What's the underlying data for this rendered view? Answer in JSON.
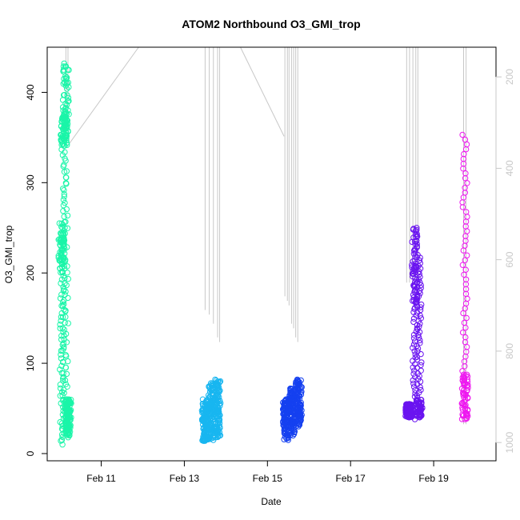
{
  "chart_data": {
    "type": "scatter",
    "title": "ATOM2 Northbound O3_GMI_trop",
    "xlabel": "Date",
    "ylabel": "O3_GMI_trop",
    "x_ticks": [
      "Feb 11",
      "Feb 13",
      "Feb 15",
      "Feb 17",
      "Feb 19"
    ],
    "x_tick_days": [
      11,
      13,
      15,
      17,
      19
    ],
    "xlim_days": [
      9.7,
      20.5
    ],
    "ylim": [
      -8,
      450
    ],
    "y_ticks": [
      0,
      100,
      200,
      300,
      400
    ],
    "right_axis": {
      "label": "",
      "ticks": [
        200,
        400,
        600,
        800,
        1000
      ],
      "ylim_inverted": [
        1040,
        135
      ],
      "color": "#c8c8c8"
    },
    "series": [
      {
        "color": "#1af5a8",
        "segments": [
          {
            "day": 10.05,
            "lo": 10,
            "hi": 255,
            "dense_from": 200,
            "dense_to": 255
          },
          {
            "day": 10.1,
            "lo": 15,
            "hi": 380,
            "dense_from": 340,
            "dense_to": 380
          },
          {
            "day": 10.15,
            "lo": 18,
            "hi": 432,
            "dense_from": 345,
            "dense_to": 432
          },
          {
            "day": 10.2,
            "lo": 20,
            "hi": 60,
            "dense_from": 20,
            "dense_to": 60
          }
        ]
      },
      {
        "color": "#18b6f0",
        "segments": [
          {
            "day": 13.5,
            "lo": 14,
            "hi": 60,
            "dense_from": 14,
            "dense_to": 60
          },
          {
            "day": 13.65,
            "lo": 15,
            "hi": 78,
            "dense_from": 15,
            "dense_to": 78
          },
          {
            "day": 13.8,
            "lo": 18,
            "hi": 82,
            "dense_from": 18,
            "dense_to": 82
          }
        ]
      },
      {
        "color": "#1540f0",
        "segments": [
          {
            "day": 15.45,
            "lo": 15,
            "hi": 60,
            "dense_from": 30,
            "dense_to": 60
          },
          {
            "day": 15.6,
            "lo": 20,
            "hi": 72,
            "dense_from": 30,
            "dense_to": 72
          },
          {
            "day": 15.75,
            "lo": 30,
            "hi": 82,
            "dense_from": 35,
            "dense_to": 82
          }
        ]
      },
      {
        "color": "#6a14f0",
        "segments": [
          {
            "day": 18.4,
            "lo": 40,
            "hi": 55,
            "dense_from": 40,
            "dense_to": 55
          },
          {
            "day": 18.55,
            "lo": 38,
            "hi": 250,
            "dense_from": 160,
            "dense_to": 250
          },
          {
            "day": 18.65,
            "lo": 40,
            "hi": 220,
            "dense_from": 40,
            "dense_to": 60
          }
        ]
      },
      {
        "color": "#ee18f0",
        "segments": [
          {
            "day": 19.75,
            "lo": 38,
            "hi": 353,
            "dense_from": 38,
            "dense_to": 90
          }
        ]
      }
    ],
    "pressure_trace": {
      "color": "#c8c8c8",
      "spikes": [
        {
          "day": 10.15,
          "top": 135,
          "bottom": 340
        },
        {
          "day": 10.2,
          "top": 135,
          "bottom": 340
        },
        {
          "day": 13.5,
          "top": 135,
          "bottom": 710
        },
        {
          "day": 13.6,
          "top": 135,
          "bottom": 720
        },
        {
          "day": 13.7,
          "top": 135,
          "bottom": 740
        },
        {
          "day": 13.8,
          "top": 135,
          "bottom": 770
        },
        {
          "day": 13.85,
          "top": 135,
          "bottom": 780
        },
        {
          "day": 15.42,
          "top": 135,
          "bottom": 680
        },
        {
          "day": 15.48,
          "top": 135,
          "bottom": 690
        },
        {
          "day": 15.52,
          "top": 135,
          "bottom": 700
        },
        {
          "day": 15.58,
          "top": 135,
          "bottom": 740
        },
        {
          "day": 15.63,
          "top": 135,
          "bottom": 750
        },
        {
          "day": 15.68,
          "top": 135,
          "bottom": 770
        },
        {
          "day": 15.73,
          "top": 135,
          "bottom": 780
        },
        {
          "day": 18.35,
          "top": 135,
          "bottom": 650
        },
        {
          "day": 18.42,
          "top": 135,
          "bottom": 650
        },
        {
          "day": 18.5,
          "top": 135,
          "bottom": 650
        },
        {
          "day": 18.57,
          "top": 135,
          "bottom": 650
        },
        {
          "day": 18.62,
          "top": 135,
          "bottom": 650
        },
        {
          "day": 19.72,
          "top": 135,
          "bottom": 960
        },
        {
          "day": 19.78,
          "top": 135,
          "bottom": 960
        }
      ],
      "connectors": [
        {
          "from_day": 10.2,
          "from_p": 350,
          "to_day": 11.9,
          "to_p": 135
        },
        {
          "from_day": 14.35,
          "from_p": 135,
          "to_day": 15.4,
          "to_p": 330
        }
      ]
    }
  }
}
